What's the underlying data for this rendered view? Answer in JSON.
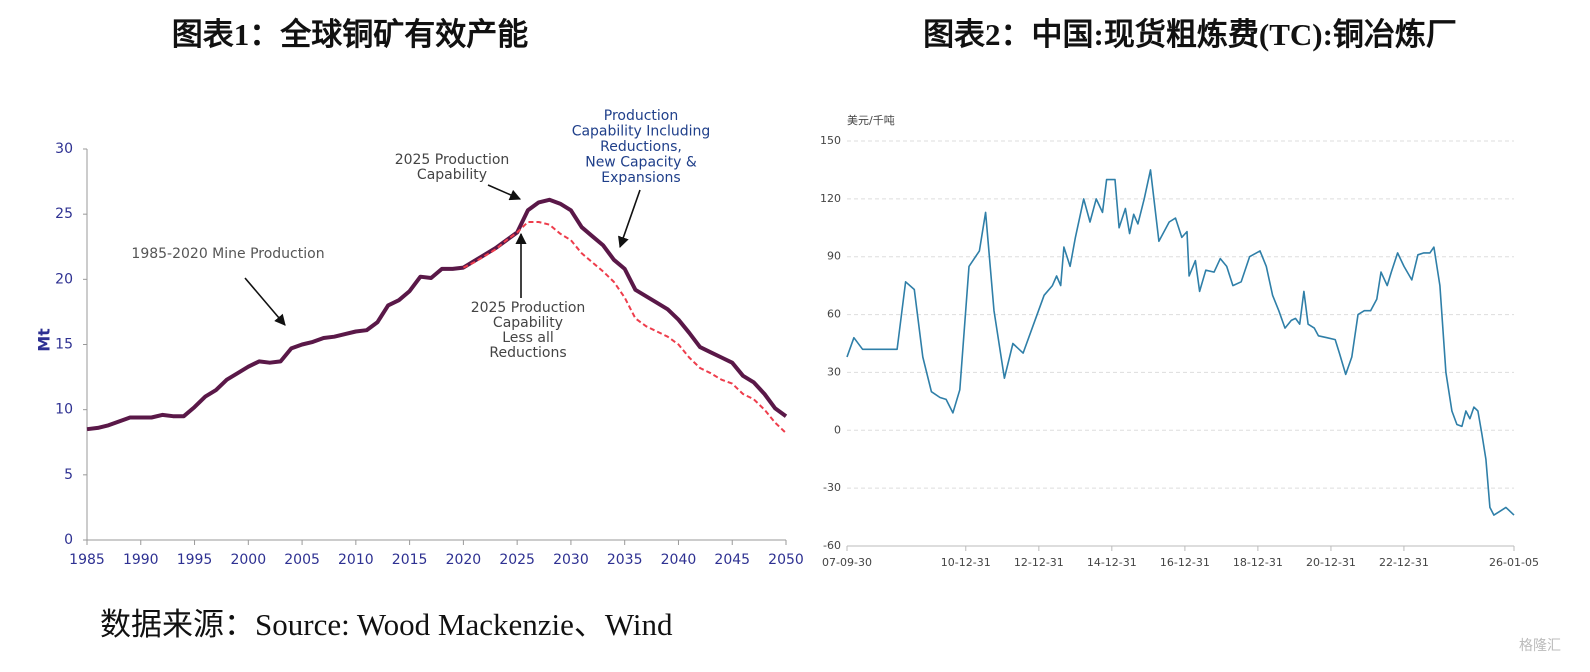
{
  "chart_data": [
    {
      "type": "line",
      "title": "图表1：全球铜矿有效产能",
      "y_label": "Mt",
      "x": [
        1985,
        1986,
        1987,
        1988,
        1989,
        1990,
        1991,
        1992,
        1993,
        1994,
        1995,
        1996,
        1997,
        1998,
        1999,
        2000,
        2001,
        2002,
        2003,
        2004,
        2005,
        2006,
        2007,
        2008,
        2009,
        2010,
        2011,
        2012,
        2013,
        2014,
        2015,
        2016,
        2017,
        2018,
        2019,
        2020,
        2021,
        2022,
        2023,
        2024,
        2025,
        2026,
        2027,
        2028,
        2029,
        2030,
        2031,
        2032,
        2033,
        2034,
        2035,
        2036,
        2037,
        2038,
        2039,
        2040,
        2041,
        2042,
        2043,
        2044,
        2045,
        2046,
        2047,
        2048,
        2049,
        2050
      ],
      "series": [
        {
          "color": "#5a1848",
          "dashed": false,
          "values": [
            8.5,
            8.6,
            8.8,
            9.1,
            9.4,
            9.4,
            9.4,
            9.6,
            9.5,
            9.5,
            10.2,
            11.0,
            11.5,
            12.3,
            12.8,
            13.3,
            13.7,
            13.6,
            13.7,
            14.7,
            15.0,
            15.2,
            15.5,
            15.6,
            15.8,
            16.0,
            16.1,
            16.7,
            18.0,
            18.4,
            19.1,
            20.2,
            20.1,
            20.8,
            20.8,
            20.9,
            21.4,
            21.9,
            22.4,
            23.0,
            23.6,
            25.3,
            25.9,
            26.1,
            25.8,
            25.3,
            24.0,
            23.3,
            22.6,
            21.5,
            20.8,
            19.2,
            18.7,
            18.2,
            17.7,
            16.9,
            15.9,
            14.8,
            14.4,
            14.0,
            13.6,
            12.6,
            12.1,
            11.2,
            10.1,
            9.5
          ]
        },
        {
          "color": "#ee3d4c",
          "dashed": true,
          "values": [
            null,
            null,
            null,
            null,
            null,
            null,
            null,
            null,
            null,
            null,
            null,
            null,
            null,
            null,
            null,
            null,
            null,
            null,
            null,
            null,
            null,
            null,
            null,
            null,
            null,
            null,
            null,
            null,
            null,
            null,
            null,
            null,
            null,
            null,
            null,
            20.9,
            21.3,
            21.8,
            22.3,
            23.0,
            23.6,
            24.4,
            24.4,
            24.2,
            23.5,
            23.0,
            22.0,
            21.3,
            20.6,
            19.8,
            18.6,
            17.0,
            16.4,
            16.0,
            15.6,
            15.0,
            14.0,
            13.2,
            12.8,
            12.3,
            12.0,
            11.2,
            10.8,
            10.0,
            9.0,
            8.2
          ]
        }
      ],
      "xlim": [
        1985,
        2050
      ],
      "xticks": [
        1985,
        1990,
        1995,
        2000,
        2005,
        2010,
        2015,
        2020,
        2025,
        2030,
        2035,
        2040,
        2045,
        2050
      ],
      "ylim": [
        0,
        30
      ],
      "yticks": [
        0,
        5,
        10,
        15,
        20,
        25,
        30
      ],
      "grid": false,
      "annotations": [
        [
          "1985-2020 Mine Production"
        ],
        [
          "2025 Production",
          "Capability"
        ],
        [
          "2025 Production",
          "Capability",
          "Less all",
          "Reductions"
        ],
        [
          "Production",
          "Capability Including",
          "Reductions,",
          "New Capacity &",
          "Expansions"
        ]
      ]
    },
    {
      "type": "line",
      "title": "图表2：中国:现货粗炼费(TC):铜冶炼厂",
      "y_label": "美元/千吨",
      "x": [
        "2007-09-30",
        "2007-12-08",
        "2008-03-04",
        "2009-02-12",
        "2009-05-08",
        "2009-08-03",
        "2009-10-27",
        "2010-01-21",
        "2010-04-17",
        "2010-06-17",
        "2010-08-24",
        "2010-11-01",
        "2011-02-01",
        "2011-05-16",
        "2011-07-17",
        "2011-10-09",
        "2012-01-21",
        "2012-04-15",
        "2012-07-27",
        "2012-11-09",
        "2013-02-22",
        "2013-05-16",
        "2013-06-27",
        "2013-08-07",
        "2013-09-08",
        "2013-11-09",
        "2014-01-01",
        "2014-03-25",
        "2014-05-27",
        "2014-07-28",
        "2014-09-29",
        "2014-11-09",
        "2015-02-01",
        "2015-03-14",
        "2015-05-16",
        "2015-06-27",
        "2015-08-07",
        "2015-09-18",
        "2015-11-20",
        "2016-01-22",
        "2016-04-15",
        "2016-07-27",
        "2016-09-28",
        "2016-11-30",
        "2017-01-21",
        "2017-02-11",
        "2017-04-15",
        "2017-05-27",
        "2017-07-28",
        "2017-10-19",
        "2017-12-20",
        "2018-02-22",
        "2018-04-25",
        "2018-07-17",
        "2018-10-09",
        "2019-01-21",
        "2019-03-25",
        "2019-05-27",
        "2019-07-28",
        "2019-09-28",
        "2019-11-30",
        "2020-01-11",
        "2020-02-22",
        "2020-04-04",
        "2020-05-16",
        "2020-07-17",
        "2020-08-27",
        "2020-11-20",
        "2021-02-11",
        "2021-03-25",
        "2021-05-27",
        "2021-07-28",
        "2021-09-28",
        "2021-11-30",
        "2022-02-01",
        "2022-04-04",
        "2022-05-16",
        "2022-07-17",
        "2022-08-27",
        "2022-10-29",
        "2023-01-01",
        "2023-03-20",
        "2023-05-20",
        "2023-07-19",
        "2023-09-17",
        "2023-10-27",
        "2023-12-26",
        "2024-02-24",
        "2024-04-24",
        "2024-06-13",
        "2024-08-02",
        "2024-09-11",
        "2024-10-21",
        "2024-11-30",
        "2025-01-09",
        "2025-02-18",
        "2025-03-30",
        "2025-05-09",
        "2025-06-18",
        "2025-08-17",
        "2025-10-16",
        "2026-01-05"
      ],
      "series": [
        {
          "color": "#2f7fa8",
          "dashed": false,
          "values": [
            38,
            48,
            42,
            42,
            77,
            73,
            38,
            20,
            17,
            16,
            9,
            21,
            85,
            93,
            113,
            62,
            27,
            45,
            40,
            55,
            70,
            75,
            80,
            75,
            95,
            85,
            100,
            120,
            108,
            120,
            113,
            130,
            130,
            105,
            115,
            102,
            112,
            107,
            120,
            135,
            98,
            108,
            110,
            100,
            103,
            80,
            88,
            72,
            83,
            82,
            89,
            85,
            75,
            77,
            90,
            93,
            85,
            70,
            62,
            53,
            57,
            58,
            55,
            72,
            55,
            53,
            49,
            48,
            47,
            40,
            29,
            38,
            60,
            62,
            62,
            68,
            82,
            75,
            82,
            92,
            85,
            78,
            91,
            92,
            92,
            95,
            75,
            30,
            10,
            3,
            2,
            10,
            6,
            12,
            10,
            -2,
            -15,
            -40,
            -44,
            -42,
            -40,
            -44
          ]
        }
      ],
      "xlim": [
        "2007-09-30",
        "2026-01-05"
      ],
      "xticks": [
        {
          "value": "2007-09-30",
          "label": "07-09-30"
        },
        {
          "value": "2010-12-31",
          "label": "10-12-31"
        },
        {
          "value": "2012-12-31",
          "label": "12-12-31"
        },
        {
          "value": "2014-12-31",
          "label": "14-12-31"
        },
        {
          "value": "2016-12-31",
          "label": "16-12-31"
        },
        {
          "value": "2018-12-31",
          "label": "18-12-31"
        },
        {
          "value": "2020-12-31",
          "label": "20-12-31"
        },
        {
          "value": "2022-12-31",
          "label": "22-12-31"
        },
        {
          "value": "2026-01-05",
          "label": "26-01-05"
        }
      ],
      "ylim": [
        -60,
        150
      ],
      "yticks": [
        -60,
        -30,
        0,
        30,
        60,
        90,
        120,
        150
      ],
      "grid": true
    }
  ],
  "source": "数据来源：Source: Wood Mackenzie、Wind",
  "watermark": "格隆汇"
}
